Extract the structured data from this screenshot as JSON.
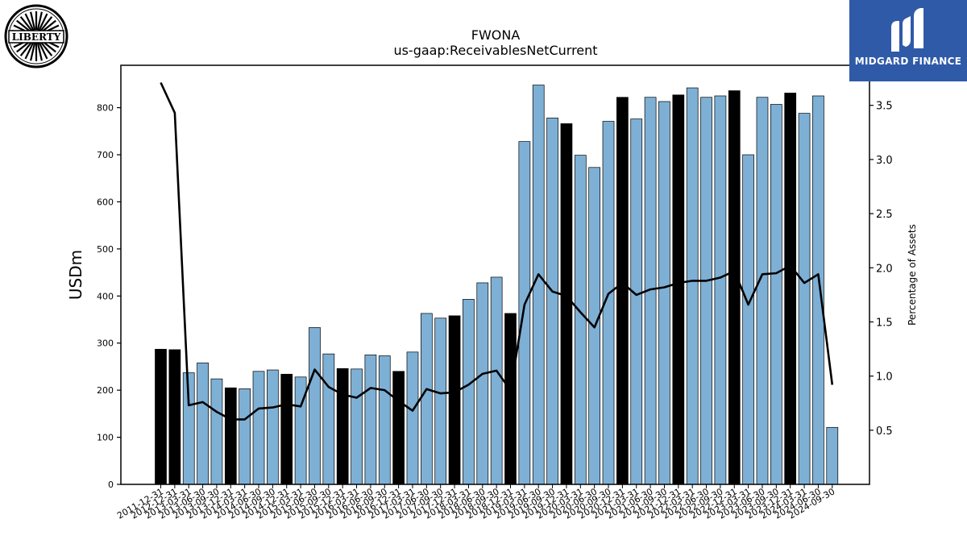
{
  "logos": {
    "left_text": "LIBERTY",
    "right_text": "MIDGARD FINANCE",
    "right_color": "#2f5aa8"
  },
  "chart_data": {
    "type": "bar",
    "title": "FWONA",
    "subtitle": "us-gaap:ReceivablesNetCurrent",
    "ylabel": "USDm",
    "y2label": "Percentage of Assets",
    "ylim": [
      0,
      890
    ],
    "y2lim": [
      0.0,
      3.87
    ],
    "yticks": [
      0,
      100,
      200,
      300,
      400,
      500,
      600,
      700,
      800
    ],
    "y2ticks": [
      0.5,
      1.0,
      1.5,
      2.0,
      2.5,
      3.0,
      3.5
    ],
    "grid": false,
    "colors": {
      "bar_q": "#7eb0d5",
      "bar_fy": "#000000",
      "line": "#000000"
    },
    "categories": [
      "2011-12-31",
      "2012-12-31",
      "2013-03-31",
      "2013-06-30",
      "2013-09-30",
      "2013-12-31",
      "2014-03-31",
      "2014-06-30",
      "2014-09-30",
      "2014-12-31",
      "2015-03-31",
      "2015-06-30",
      "2015-09-30",
      "2015-12-31",
      "2016-03-31",
      "2016-06-30",
      "2016-09-30",
      "2016-12-31",
      "2017-03-31",
      "2017-06-30",
      "2017-09-30",
      "2017-12-31",
      "2018-03-31",
      "2018-06-30",
      "2018-09-30",
      "2018-12-31",
      "2019-03-31",
      "2019-06-30",
      "2019-09-30",
      "2019-12-31",
      "2020-03-31",
      "2020-06-30",
      "2020-09-30",
      "2020-12-31",
      "2021-03-31",
      "2021-06-30",
      "2021-09-30",
      "2021-12-31",
      "2022-03-31",
      "2022-06-30",
      "2022-09-30",
      "2022-12-31",
      "2023-03-31",
      "2023-06-30",
      "2023-09-30",
      "2023-12-31",
      "2024-03-31",
      "2024-06-30",
      "2024-09-30"
    ],
    "series": [
      {
        "type": "bar",
        "values": [
          287,
          286,
          237,
          258,
          224,
          205,
          203,
          240,
          243,
          234,
          228,
          333,
          277,
          246,
          245,
          275,
          273,
          240,
          281,
          363,
          353,
          358,
          393,
          428,
          440,
          363,
          728,
          848,
          778,
          766,
          699,
          673,
          771,
          822,
          776,
          822,
          813,
          827,
          842,
          822,
          825,
          836,
          700,
          822,
          807,
          831,
          788,
          825,
          121
        ],
        "fiscal_year_end": [
          true,
          true,
          false,
          false,
          false,
          true,
          false,
          false,
          false,
          true,
          false,
          false,
          false,
          true,
          false,
          false,
          false,
          true,
          false,
          false,
          false,
          true,
          false,
          false,
          false,
          true,
          false,
          false,
          false,
          true,
          false,
          false,
          false,
          true,
          false,
          false,
          false,
          true,
          false,
          false,
          false,
          true,
          false,
          false,
          false,
          true,
          false,
          false,
          false
        ]
      },
      {
        "type": "line",
        "axis": "right",
        "values": [
          3.71,
          3.43,
          0.73,
          0.76,
          0.67,
          0.6,
          0.6,
          0.7,
          0.71,
          0.74,
          0.72,
          1.06,
          0.9,
          0.83,
          0.8,
          0.89,
          0.87,
          0.77,
          0.68,
          0.88,
          0.84,
          0.85,
          0.92,
          1.02,
          1.05,
          0.87,
          1.66,
          1.94,
          1.78,
          1.74,
          1.59,
          1.45,
          1.76,
          1.86,
          1.75,
          1.8,
          1.82,
          1.86,
          1.88,
          1.88,
          1.91,
          1.97,
          1.66,
          1.94,
          1.95,
          2.02,
          1.86,
          1.94,
          0.92
        ]
      }
    ]
  }
}
